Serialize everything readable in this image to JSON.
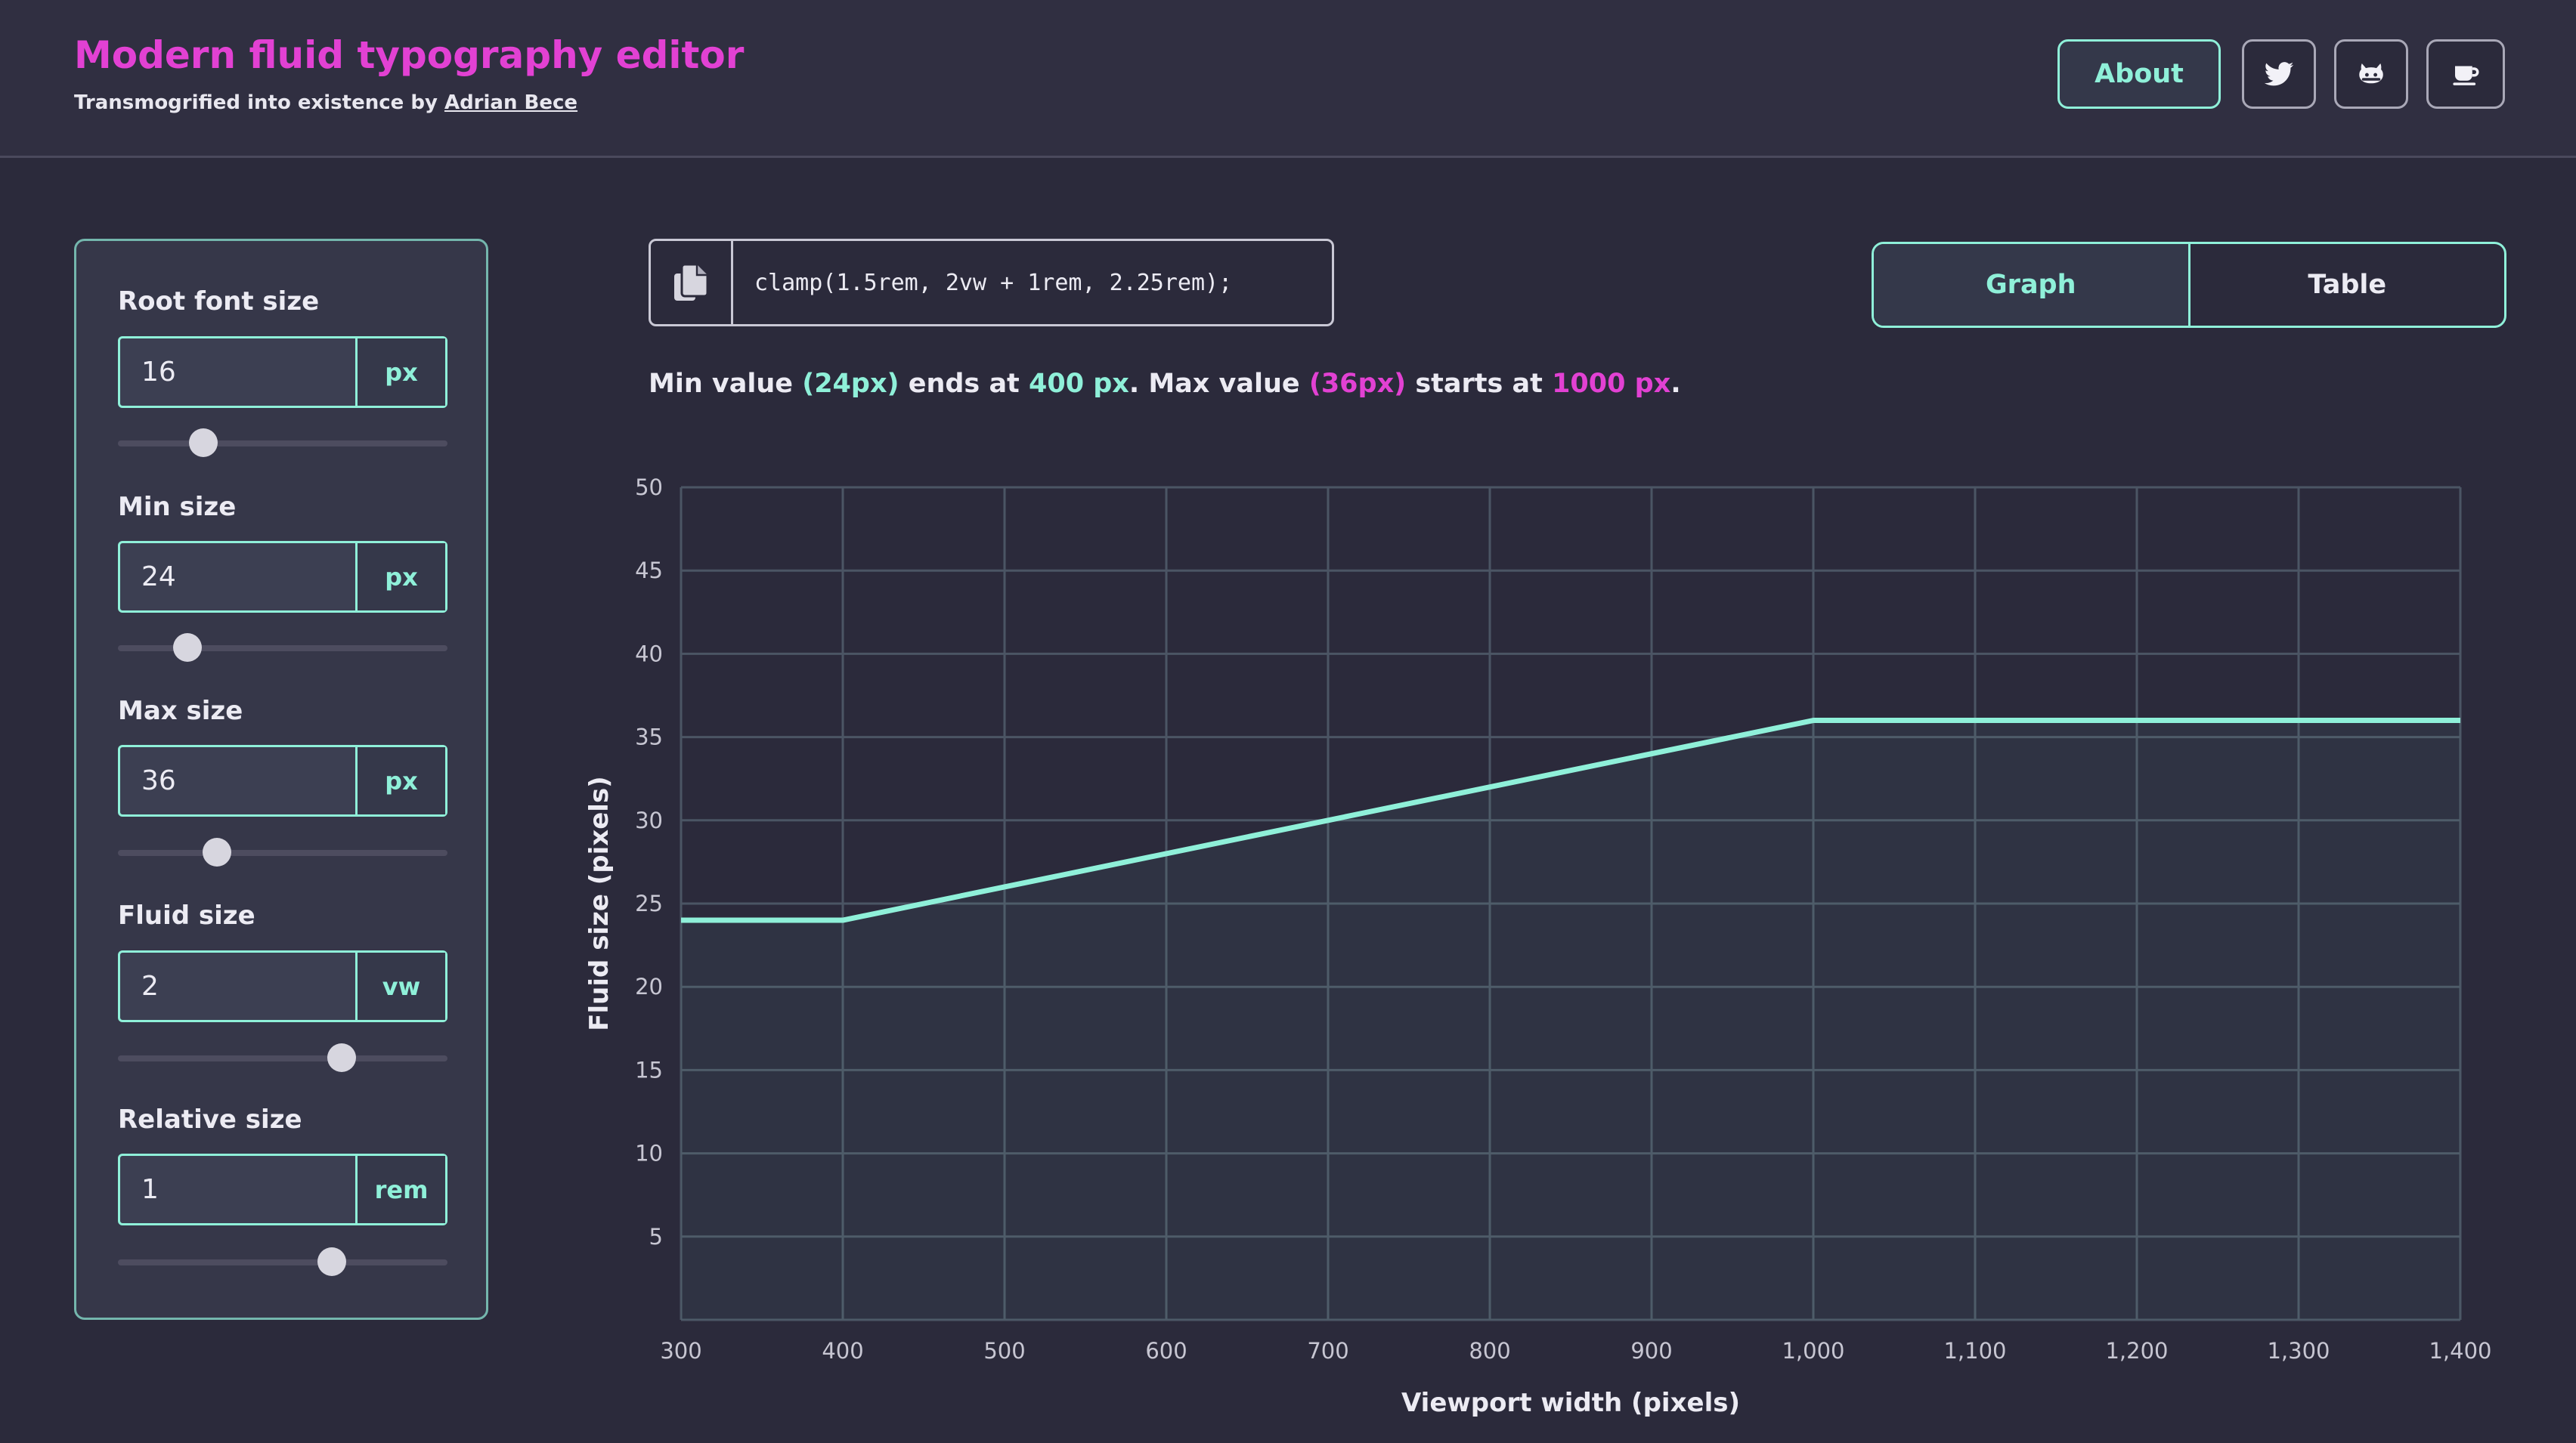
{
  "header": {
    "title": "Modern fluid typography editor",
    "subtitle_prefix": "Transmogrified into existence by",
    "author": "Adrian Bece",
    "about_label": "About",
    "icons": [
      "twitter-icon",
      "github-icon",
      "coffee-icon"
    ]
  },
  "sidebar": {
    "fields": [
      {
        "label": "Root font size",
        "value": "16",
        "unit": "px",
        "slider": 0.26
      },
      {
        "label": "Min size",
        "value": "24",
        "unit": "px",
        "slider": 0.21
      },
      {
        "label": "Max size",
        "value": "36",
        "unit": "px",
        "slider": 0.3
      },
      {
        "label": "Fluid size",
        "value": "2",
        "unit": "vw",
        "slider": 0.68
      },
      {
        "label": "Relative size",
        "value": "1",
        "unit": "rem",
        "slider": 0.65
      }
    ]
  },
  "code": {
    "value": "clamp(1.5rem, 2vw + 1rem, 2.25rem);"
  },
  "summary": {
    "p1": "Min value ",
    "min_value": "(24px)",
    "p2": " ends at ",
    "min_end": "400 px",
    "p3": ". Max value ",
    "max_value": "(36px)",
    "p4": " starts at ",
    "max_start": "1000 px",
    "p5": "."
  },
  "tabs": [
    {
      "label": "Graph",
      "active": true
    },
    {
      "label": "Table",
      "active": false
    }
  ],
  "colors": {
    "accent_teal": "#8ff0d9",
    "accent_pink": "#e241d3",
    "background": "#2b2a3b"
  },
  "chart_data": {
    "type": "line",
    "xlabel": "Viewport width (pixels)",
    "ylabel": "Fluid size (pixels)",
    "xlim": [
      300,
      1400
    ],
    "ylim": [
      0,
      50
    ],
    "x_ticks": [
      "300",
      "400",
      "500",
      "600",
      "700",
      "800",
      "900",
      "1,000",
      "1,100",
      "1,200",
      "1,300",
      "1,400"
    ],
    "y_ticks": [
      "5",
      "10",
      "15",
      "20",
      "25",
      "30",
      "35",
      "40",
      "45",
      "50"
    ],
    "grid": true,
    "series": [
      {
        "x": [
          300,
          400,
          1000,
          1400
        ],
        "y": [
          24,
          24,
          36,
          36
        ],
        "color": "#8ff0d9"
      }
    ]
  }
}
